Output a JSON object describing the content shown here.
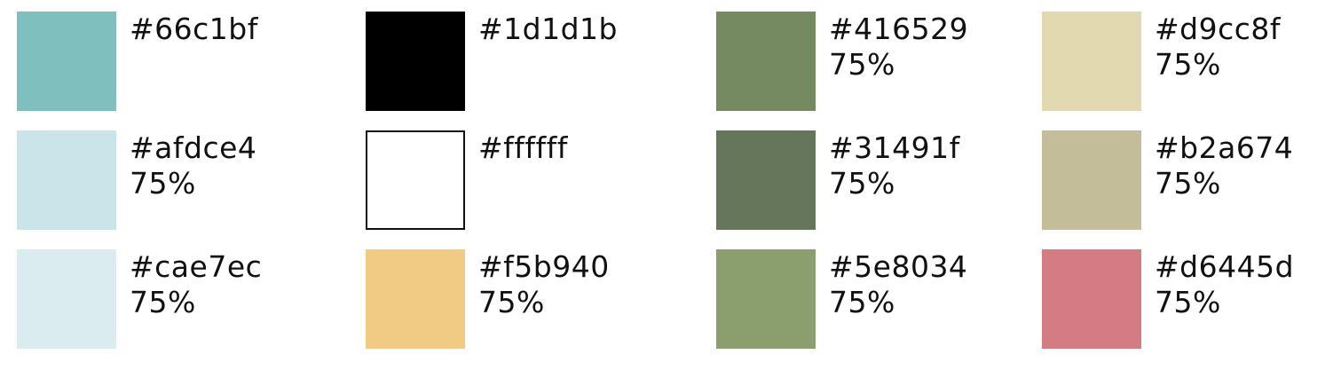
{
  "palette": {
    "columns": [
      {
        "items": [
          {
            "hex": "#66c1bf",
            "opacity": "",
            "fill": "#7fc0bf"
          },
          {
            "hex": "#afdce4",
            "opacity": "75%",
            "fill": "#cbe4e9"
          },
          {
            "hex": "#cae7ec",
            "opacity": "75%",
            "fill": "#dbecf0"
          }
        ]
      },
      {
        "items": [
          {
            "hex": "#1d1d1b",
            "opacity": "",
            "fill": "#000000"
          },
          {
            "hex": "#ffffff",
            "opacity": "",
            "fill": "#ffffff",
            "outlined": true
          },
          {
            "hex": "#f5b940",
            "opacity": "75%",
            "fill": "#f1cb84"
          }
        ]
      },
      {
        "items": [
          {
            "hex": "#416529",
            "opacity": "75%",
            "fill": "#768a62"
          },
          {
            "hex": "#31491f",
            "opacity": "75%",
            "fill": "#66765b"
          },
          {
            "hex": "#5e8034",
            "opacity": "75%",
            "fill": "#8b9e6d"
          }
        ]
      },
      {
        "items": [
          {
            "hex": "#d9cc8f",
            "opacity": "75%",
            "fill": "#e2d9b0"
          },
          {
            "hex": "#b2a674",
            "opacity": "75%",
            "fill": "#c3bd99"
          },
          {
            "hex": "#d6445d",
            "opacity": "75%",
            "fill": "#d57b84"
          }
        ]
      }
    ]
  }
}
